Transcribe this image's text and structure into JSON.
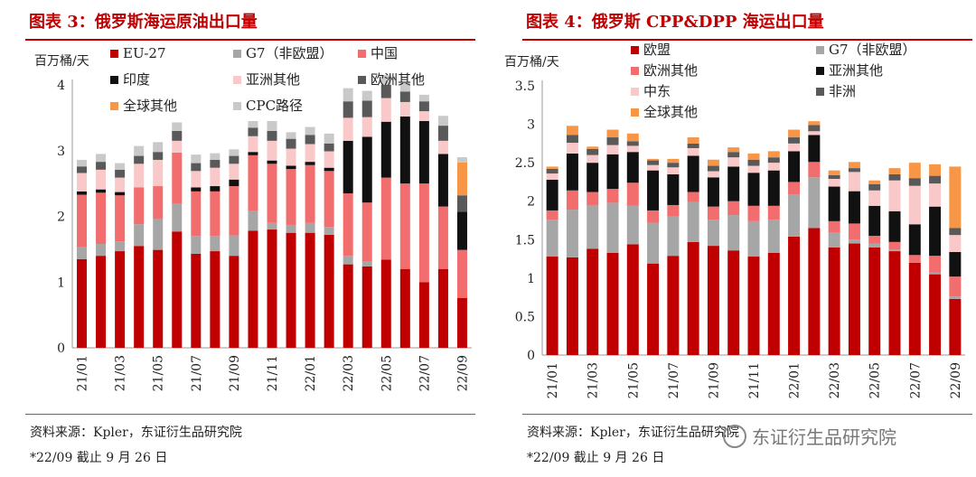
{
  "watermark": {
    "text": "东证衍生品研究院"
  },
  "chart_data": [
    {
      "type": "bar",
      "stacked": true,
      "title": "图表 3：俄罗斯海运原油出口量",
      "ylabel": "百万桶/天",
      "ylim": [
        0,
        4
      ],
      "yticks": [
        0,
        1,
        2,
        3,
        4
      ],
      "xtick_labels": [
        "21/01",
        "21/03",
        "21/05",
        "21/07",
        "21/09",
        "21/11",
        "22/01",
        "22/03",
        "22/05",
        "22/07",
        "22/09"
      ],
      "source": "资料来源：Kpler，东证衍生品研究院",
      "note": "*22/09 截止 9 月 26 日",
      "legend_layout": "top, 3 columns",
      "categories": [
        "21/01",
        "21/02",
        "21/03",
        "21/04",
        "21/05",
        "21/06",
        "21/07",
        "21/08",
        "21/09",
        "21/10",
        "21/11",
        "21/12",
        "22/01",
        "22/02",
        "22/03",
        "22/04",
        "22/05",
        "22/06",
        "22/07",
        "22/08",
        "22/09"
      ],
      "series": [
        {
          "name": "EU-27",
          "color": "#c00000",
          "values": [
            1.35,
            1.4,
            1.47,
            1.55,
            1.49,
            1.77,
            1.43,
            1.47,
            1.4,
            1.78,
            1.8,
            1.75,
            1.75,
            1.72,
            1.27,
            1.24,
            1.34,
            1.2,
            1.0,
            1.2,
            0.76
          ]
        },
        {
          "name": "G7（非欧盟）",
          "color": "#a6a6a6",
          "values": [
            0.18,
            0.18,
            0.15,
            0.33,
            0.47,
            0.42,
            0.27,
            0.23,
            0.31,
            0.3,
            0.1,
            0.12,
            0.15,
            0.12,
            0.13,
            0.07,
            0.0,
            0.0,
            0.0,
            0.0,
            0.0
          ]
        },
        {
          "name": "中国",
          "color": "#f26d6d",
          "values": [
            0.8,
            0.78,
            0.7,
            0.56,
            0.5,
            0.78,
            0.68,
            0.68,
            0.75,
            0.85,
            0.9,
            0.85,
            0.88,
            0.85,
            0.95,
            0.9,
            1.25,
            1.3,
            1.5,
            0.95,
            0.73
          ]
        },
        {
          "name": "印度",
          "color": "#111111",
          "values": [
            0.05,
            0.05,
            0.05,
            0.0,
            0.0,
            0.0,
            0.06,
            0.08,
            0.1,
            0.05,
            0.05,
            0.05,
            0.05,
            0.05,
            0.8,
            1.0,
            0.85,
            1.02,
            0.95,
            0.8,
            0.58
          ]
        },
        {
          "name": "亚洲其他",
          "color": "#f9c9c9",
          "values": [
            0.28,
            0.3,
            0.22,
            0.36,
            0.4,
            0.18,
            0.25,
            0.28,
            0.24,
            0.24,
            0.3,
            0.26,
            0.27,
            0.25,
            0.35,
            0.3,
            0.36,
            0.22,
            0.15,
            0.2,
            0.0
          ]
        },
        {
          "name": "欧洲其他",
          "color": "#595959",
          "values": [
            0.1,
            0.12,
            0.12,
            0.12,
            0.12,
            0.15,
            0.12,
            0.12,
            0.12,
            0.13,
            0.15,
            0.15,
            0.14,
            0.12,
            0.25,
            0.25,
            0.2,
            0.16,
            0.15,
            0.23,
            0.25
          ]
        },
        {
          "name": "全球其他",
          "color": "#f79646",
          "values": [
            0.0,
            0.0,
            0.0,
            0.0,
            0.0,
            0.0,
            0.0,
            0.0,
            0.0,
            0.0,
            0.0,
            0.0,
            0.0,
            0.0,
            0.0,
            0.0,
            0.0,
            0.0,
            0.0,
            0.0,
            0.5
          ]
        },
        {
          "name": "CPC路径",
          "color": "#c9c9c9",
          "values": [
            0.1,
            0.12,
            0.1,
            0.15,
            0.15,
            0.13,
            0.13,
            0.1,
            0.1,
            0.1,
            0.15,
            0.1,
            0.12,
            0.15,
            0.2,
            0.15,
            0.15,
            0.15,
            0.1,
            0.15,
            0.08
          ]
        }
      ]
    },
    {
      "type": "bar",
      "stacked": true,
      "title": "图表 4：俄罗斯 CPP&DPP 海运出口量",
      "ylabel": "百万桶/天",
      "ylim": [
        0,
        3.5
      ],
      "yticks": [
        0,
        0.5,
        1,
        1.5,
        2,
        2.5,
        3,
        3.5
      ],
      "xtick_labels": [
        "21/01",
        "21/03",
        "21/05",
        "21/07",
        "21/09",
        "21/11",
        "22/01",
        "22/03",
        "22/05",
        "22/07",
        "22/09"
      ],
      "source": "资料来源：Kpler，东证衍生品研究院",
      "note": "*22/09 截止 9 月 26 日",
      "legend_layout": "top, 2 columns",
      "categories": [
        "21/01",
        "21/02",
        "21/03",
        "21/04",
        "21/05",
        "21/06",
        "21/07",
        "21/08",
        "21/09",
        "21/10",
        "21/11",
        "21/12",
        "22/01",
        "22/02",
        "22/03",
        "22/04",
        "22/05",
        "22/06",
        "22/07",
        "22/08",
        "22/09"
      ],
      "series": [
        {
          "name": "欧盟",
          "color": "#c00000",
          "values": [
            1.28,
            1.27,
            1.38,
            1.33,
            1.44,
            1.19,
            1.29,
            1.47,
            1.42,
            1.36,
            1.28,
            1.33,
            1.54,
            1.65,
            1.4,
            1.45,
            1.4,
            1.35,
            1.2,
            1.05,
            0.73
          ]
        },
        {
          "name": "G7（非欧盟）",
          "color": "#a6a6a6",
          "values": [
            0.48,
            0.62,
            0.57,
            0.65,
            0.5,
            0.53,
            0.51,
            0.52,
            0.34,
            0.46,
            0.46,
            0.43,
            0.55,
            0.66,
            0.19,
            0.05,
            0.05,
            0.02,
            0.0,
            0.02,
            0.03
          ]
        },
        {
          "name": "欧洲其他",
          "color": "#f26d6d",
          "values": [
            0.12,
            0.25,
            0.17,
            0.18,
            0.3,
            0.16,
            0.15,
            0.13,
            0.17,
            0.18,
            0.2,
            0.18,
            0.16,
            0.2,
            0.15,
            0.21,
            0.1,
            0.1,
            0.1,
            0.22,
            0.26
          ]
        },
        {
          "name": "亚洲其他",
          "color": "#111111",
          "values": [
            0.4,
            0.48,
            0.38,
            0.45,
            0.4,
            0.52,
            0.4,
            0.47,
            0.38,
            0.45,
            0.43,
            0.46,
            0.4,
            0.35,
            0.45,
            0.42,
            0.39,
            0.4,
            0.4,
            0.64,
            0.32
          ]
        },
        {
          "name": "中东",
          "color": "#f9c9c9",
          "values": [
            0.08,
            0.14,
            0.1,
            0.12,
            0.08,
            0.07,
            0.09,
            0.1,
            0.08,
            0.12,
            0.09,
            0.1,
            0.1,
            0.05,
            0.1,
            0.25,
            0.2,
            0.4,
            0.5,
            0.3,
            0.22
          ]
        },
        {
          "name": "非洲",
          "color": "#595959",
          "values": [
            0.06,
            0.1,
            0.08,
            0.1,
            0.06,
            0.06,
            0.06,
            0.06,
            0.07,
            0.07,
            0.08,
            0.07,
            0.08,
            0.08,
            0.05,
            0.05,
            0.08,
            0.08,
            0.1,
            0.1,
            0.09
          ]
        },
        {
          "name": "全球其他",
          "color": "#f79646",
          "values": [
            0.03,
            0.12,
            0.03,
            0.1,
            0.1,
            0.02,
            0.05,
            0.08,
            0.08,
            0.06,
            0.08,
            0.08,
            0.1,
            0.05,
            0.06,
            0.08,
            0.05,
            0.08,
            0.2,
            0.15,
            0.8
          ]
        }
      ]
    }
  ]
}
